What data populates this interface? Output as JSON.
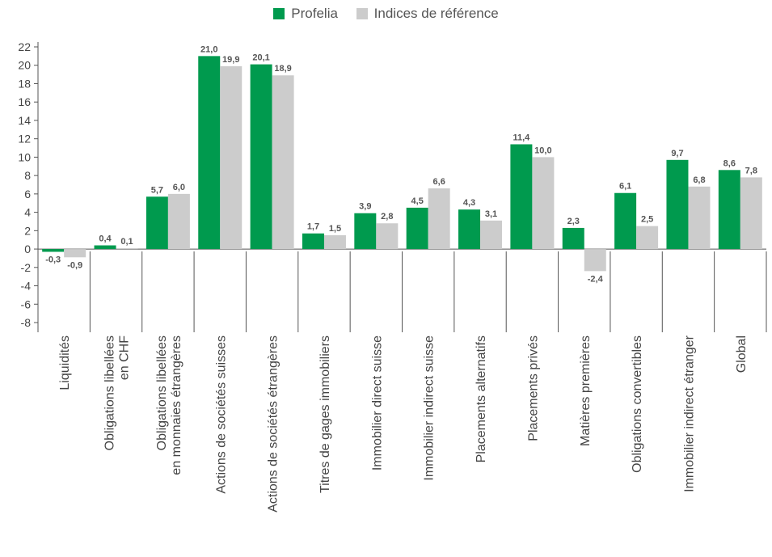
{
  "chart_data": {
    "type": "bar",
    "categories": [
      "Liquidités",
      "Obligations libellées en CHF",
      "Obligations libellées en monnaies étrangères",
      "Actions de sociétés suisses",
      "Actions de sociétés étrangères",
      "Titres de gages immobiliers",
      "Immobilier direct suisse",
      "Immobilier indirect suisse",
      "Placements alternatifs",
      "Placements privés",
      "Matières premières",
      "Obligations convertibles",
      "Immobilier indirect étranger",
      "Global"
    ],
    "category_lines": [
      [
        "Liquidités"
      ],
      [
        "Obligations libellées",
        "en CHF"
      ],
      [
        "Obligations libellées",
        "en monnaies étrangères"
      ],
      [
        "Actions de sociétés suisses"
      ],
      [
        "Actions de sociétés étrangères"
      ],
      [
        "Titres de gages immobiliers"
      ],
      [
        "Immobilier direct suisse"
      ],
      [
        "Immobilier indirect suisse"
      ],
      [
        "Placements alternatifs"
      ],
      [
        "Placements privés"
      ],
      [
        "Matières premières"
      ],
      [
        "Obligations convertibles"
      ],
      [
        "Immobilier indirect étranger"
      ],
      [
        "Global"
      ]
    ],
    "series": [
      {
        "name": "Profelia",
        "color": "#009a4e",
        "values": [
          -0.3,
          0.4,
          5.7,
          21.0,
          20.1,
          1.7,
          3.9,
          4.5,
          4.3,
          11.4,
          2.3,
          6.1,
          9.7,
          8.6
        ],
        "labels": [
          "-0,3",
          "0,4",
          "5,7",
          "21,0",
          "20,1",
          "1,7",
          "3,9",
          "4,5",
          "4,3",
          "11,4",
          "2,3",
          "6,1",
          "9,7",
          "8,6"
        ]
      },
      {
        "name": "Indices de référence",
        "color": "#cccccc",
        "values": [
          -0.9,
          0.1,
          6.0,
          19.9,
          18.9,
          1.5,
          2.8,
          6.6,
          3.1,
          10.0,
          -2.4,
          2.5,
          6.8,
          7.8
        ],
        "labels": [
          "-0,9",
          "0,1",
          "6,0",
          "19,9",
          "18,9",
          "1,5",
          "2,8",
          "6,6",
          "3,1",
          "10,0",
          "-2,4",
          "2,5",
          "6,8",
          "7,8"
        ]
      }
    ],
    "ylim": [
      -8,
      22
    ],
    "yticks": [
      -8,
      -6,
      -4,
      -2,
      0,
      2,
      4,
      6,
      8,
      10,
      12,
      14,
      16,
      18,
      20,
      22
    ],
    "grid": false,
    "legend_position": "top-center",
    "title": "",
    "xlabel": "",
    "ylabel": ""
  }
}
